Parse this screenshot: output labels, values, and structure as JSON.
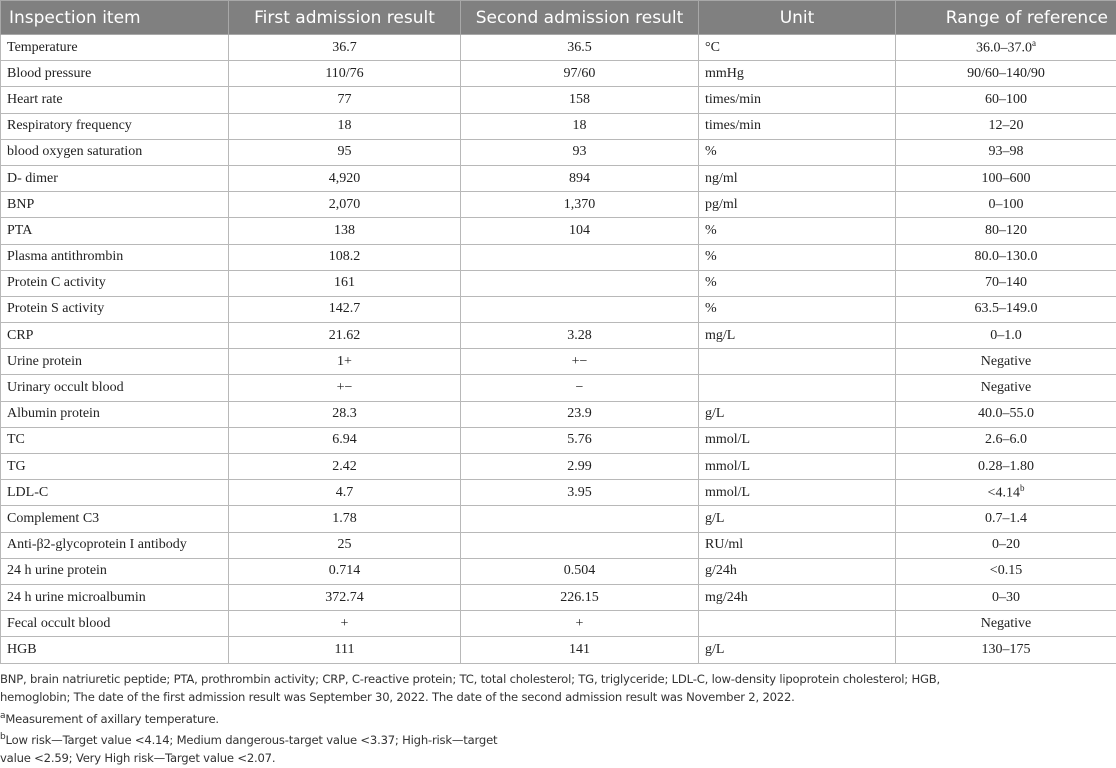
{
  "table": {
    "headers": [
      "Inspection item",
      "First admission result",
      "Second admission result",
      "Unit",
      "Range of reference"
    ],
    "rows": [
      {
        "item": "Temperature",
        "first": "36.7",
        "second": "36.5",
        "unit": "°C",
        "range": "36.0–37.0",
        "sup": "a"
      },
      {
        "item": "Blood pressure",
        "first": "110/76",
        "second": "97/60",
        "unit": "mmHg",
        "range": "90/60–140/90"
      },
      {
        "item": "Heart rate",
        "first": "77",
        "second": "158",
        "unit": "times/min",
        "range": "60–100"
      },
      {
        "item": "Respiratory frequency",
        "first": "18",
        "second": "18",
        "unit": "times/min",
        "range": "12–20"
      },
      {
        "item": "blood oxygen saturation",
        "first": "95",
        "second": "93",
        "unit": "%",
        "range": "93–98"
      },
      {
        "item": "D- dimer",
        "first": "4,920",
        "second": "894",
        "unit": "ng/ml",
        "range": "100–600"
      },
      {
        "item": "BNP",
        "first": "2,070",
        "second": "1,370",
        "unit": "pg/ml",
        "range": "0–100"
      },
      {
        "item": "PTA",
        "first": "138",
        "second": "104",
        "unit": "%",
        "range": "80–120"
      },
      {
        "item": "Plasma antithrombin",
        "first": "108.2",
        "second": "",
        "unit": "%",
        "range": "80.0–130.0"
      },
      {
        "item": "Protein C activity",
        "first": "161",
        "second": "",
        "unit": "%",
        "range": "70–140"
      },
      {
        "item": "Protein S activity",
        "first": "142.7",
        "second": "",
        "unit": "%",
        "range": "63.5–149.0"
      },
      {
        "item": "CRP",
        "first": "21.62",
        "second": "3.28",
        "unit": "mg/L",
        "range": "0–1.0"
      },
      {
        "item": "Urine protein",
        "first": "1+",
        "second": "+−",
        "unit": "",
        "range": "Negative"
      },
      {
        "item": "Urinary occult blood",
        "first": "+−",
        "second": "−",
        "unit": "",
        "range": "Negative"
      },
      {
        "item": "Albumin protein",
        "first": "28.3",
        "second": "23.9",
        "unit": "g/L",
        "range": "40.0–55.0"
      },
      {
        "item": "TC",
        "first": "6.94",
        "second": "5.76",
        "unit": "mmol/L",
        "range": "2.6–6.0"
      },
      {
        "item": "TG",
        "first": "2.42",
        "second": "2.99",
        "unit": "mmol/L",
        "range": "0.28–1.80"
      },
      {
        "item": "LDL-C",
        "first": "4.7",
        "second": "3.95",
        "unit": "mmol/L",
        "range": "<4.14",
        "sup": "b"
      },
      {
        "item": "Complement C3",
        "first": "1.78",
        "second": "",
        "unit": "g/L",
        "range": "0.7–1.4"
      },
      {
        "item": "Anti-β2-glycoprotein I antibody",
        "first": "25",
        "second": "",
        "unit": "RU/ml",
        "range": "0–20"
      },
      {
        "item": "24 h urine protein",
        "first": "0.714",
        "second": "0.504",
        "unit": "g/24h",
        "range": "<0.15"
      },
      {
        "item": "24 h urine microalbumin",
        "first": "372.74",
        "second": "226.15",
        "unit": "mg/24h",
        "range": "0–30"
      },
      {
        "item": "Fecal occult blood",
        "first": "+",
        "second": "+",
        "unit": "",
        "range": "Negative"
      },
      {
        "item": "HGB",
        "first": "111",
        "second": "141",
        "unit": "g/L",
        "range": "130–175"
      }
    ]
  },
  "notes": {
    "abbrev_line1": "BNP, brain natriuretic peptide; PTA, prothrombin activity; CRP, C-reactive protein; TC, total cholesterol; TG, triglyceride; LDL-C, low-density lipoprotein cholesterol; HGB,",
    "abbrev_line2": "hemoglobin; The date of the first admission result was September 30, 2022. The date of the second admission result was November 2, 2022.",
    "a_mark": "a",
    "a_text": "Measurement of axillary temperature.",
    "b_mark": "b",
    "b_line1": "Low risk—Target value <4.14; Medium dangerous-target value <3.37; High-risk—target",
    "b_line2": "value <2.59; Very High risk—Target value <2.07."
  }
}
